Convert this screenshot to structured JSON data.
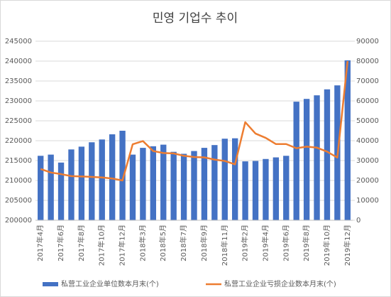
{
  "chart_data": {
    "type": "bar_line",
    "title": "민영 기업수 추이",
    "categories": [
      "2017年4月",
      null,
      "2017年6月",
      null,
      "2017年8月",
      null,
      "2017年10月",
      null,
      "2017年12月",
      null,
      "2018年3月",
      null,
      "2018年5月",
      null,
      "2018年7月",
      null,
      "2018年9月",
      null,
      "2018年11月",
      null,
      "2019年2月",
      null,
      "2019年4月",
      null,
      "2019年6月",
      null,
      "2019年8月",
      null,
      "2019年10月",
      null,
      "2019年12月"
    ],
    "series": [
      {
        "name": "私营工业企业单位数本月末(个)",
        "color": "#4472c4",
        "kind": "bar",
        "axis": "y",
        "values": [
          216200,
          216500,
          214500,
          217800,
          218500,
          219600,
          220300,
          221600,
          222500,
          216500,
          218200,
          218600,
          219000,
          217200,
          216700,
          217400,
          218200,
          218900,
          220500,
          220600,
          214800,
          214900,
          215400,
          215800,
          216200,
          229800,
          230500,
          231400,
          232900,
          233900,
          240200
        ]
      },
      {
        "name": "私营工业企业亏损企业数本月末(个)",
        "color": "#ed7d31",
        "kind": "line",
        "axis": "y2",
        "values": [
          25800,
          24000,
          23200,
          22200,
          22000,
          21800,
          21500,
          21000,
          20000,
          38200,
          39800,
          34800,
          33800,
          33600,
          32400,
          31800,
          31600,
          30500,
          29800,
          28100,
          49300,
          43600,
          41400,
          38300,
          38300,
          36200,
          37000,
          36500,
          34500,
          31500,
          80000
        ]
      }
    ],
    "ylim": [
      200000,
      245000
    ],
    "yticks": [
      200000,
      205000,
      210000,
      215000,
      220000,
      225000,
      230000,
      235000,
      240000,
      245000
    ],
    "y2lim": [
      0,
      90000
    ],
    "y2ticks": [
      0,
      10000,
      20000,
      30000,
      40000,
      50000,
      60000,
      70000,
      80000,
      90000
    ],
    "grid": true,
    "legend": "bottom"
  }
}
